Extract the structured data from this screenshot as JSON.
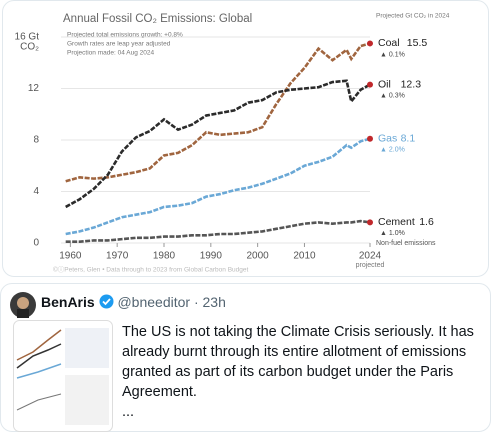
{
  "chart_data": {
    "type": "line",
    "title": "Annual Fossil CO₂ Emissions: Global",
    "notes": [
      "Projected total emissions growth: +0.8%",
      "Growth rates are leap year adjusted",
      "Projection made: 04 Aug 2024"
    ],
    "right_header": "Projected Gt CO₂ in 2024",
    "y_unit": "CO₂",
    "x_note": "projected",
    "extra_label": "Non-fuel emissions",
    "footer": "©ⓘPeters, Glen  •  Data through to 2023 from Global Carbon Budget",
    "x": [
      1959,
      1962,
      1965,
      1968,
      1971,
      1974,
      1977,
      1980,
      1983,
      1986,
      1989,
      1992,
      1995,
      1998,
      2001,
      2004,
      2007,
      2010,
      2013,
      2016,
      2019,
      2020,
      2022,
      2024
    ],
    "series": [
      {
        "name": "Coal",
        "color": "#a0653f",
        "growth": "▲ 0.1%",
        "values": [
          4.8,
          5.1,
          5.0,
          5.1,
          5.3,
          5.5,
          5.8,
          6.8,
          7.0,
          7.6,
          8.6,
          8.4,
          8.5,
          8.6,
          9.0,
          10.8,
          12.4,
          13.6,
          15.1,
          14.2,
          15.0,
          14.3,
          15.3,
          15.5
        ]
      },
      {
        "name": "Oil",
        "color": "#2b2b2b",
        "growth": "▲ 0.3%",
        "values": [
          2.8,
          3.4,
          4.2,
          5.3,
          7.1,
          8.2,
          8.7,
          9.6,
          8.8,
          9.2,
          9.9,
          10.1,
          10.3,
          10.9,
          11.1,
          11.7,
          11.9,
          12.0,
          12.1,
          12.5,
          12.6,
          11.0,
          11.9,
          12.3
        ]
      },
      {
        "name": "Gas",
        "color": "#6aa8d6",
        "growth": "▲ 2.0%",
        "values": [
          0.7,
          0.9,
          1.2,
          1.6,
          2.0,
          2.2,
          2.4,
          2.8,
          2.9,
          3.1,
          3.6,
          3.8,
          4.1,
          4.3,
          4.6,
          5.0,
          5.4,
          6.0,
          6.3,
          6.7,
          7.6,
          7.4,
          7.9,
          8.1
        ]
      },
      {
        "name": "Cement",
        "color": "#555555",
        "growth": "▲ 1.0%",
        "values": [
          0.1,
          0.1,
          0.2,
          0.2,
          0.3,
          0.4,
          0.4,
          0.5,
          0.5,
          0.6,
          0.6,
          0.7,
          0.7,
          0.8,
          0.9,
          1.1,
          1.3,
          1.5,
          1.6,
          1.5,
          1.6,
          1.6,
          1.7,
          1.6
        ]
      }
    ],
    "xlim": [
      1958,
      2024
    ],
    "xticks": [
      1960,
      1970,
      1980,
      1990,
      2000,
      2010,
      2024
    ],
    "ylim": [
      0,
      16
    ],
    "yticks": [
      0,
      4,
      8,
      12,
      {
        "value": 16,
        "label": "16 Gt"
      }
    ],
    "grid": true,
    "end_marker_color": "#c0282b"
  },
  "tweet": {
    "name": "BenAris",
    "handle": "@bneeditor · 23h",
    "text": "The US is not taking the Climate Crisis seriously. It has already burnt through its entire allotment of emissions granted as part of its carbon budget under the Paris Agreement.",
    "more": "..."
  }
}
